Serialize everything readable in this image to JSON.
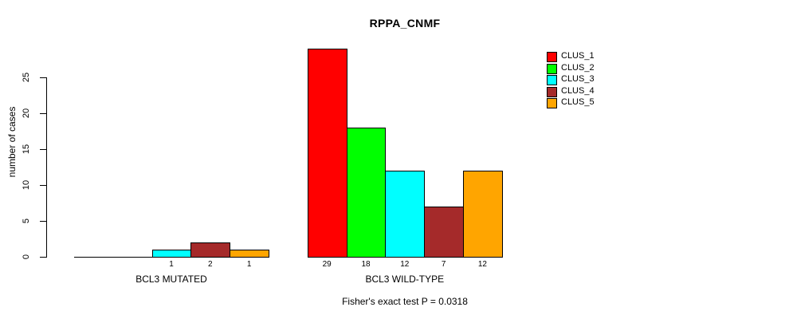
{
  "chart_data": {
    "type": "bar",
    "title": "RPPA_CNMF",
    "ylabel": "number of cases",
    "xlabel": "",
    "yticks": [
      0,
      5,
      10,
      15,
      20,
      25
    ],
    "ylim": [
      0,
      29
    ],
    "grid": false,
    "legend_position": "right",
    "series": [
      {
        "name": "CLUS_1",
        "color": "#FF0000"
      },
      {
        "name": "CLUS_2",
        "color": "#00FF00"
      },
      {
        "name": "CLUS_3",
        "color": "#00FFFF"
      },
      {
        "name": "CLUS_4",
        "color": "#A52A2A"
      },
      {
        "name": "CLUS_5",
        "color": "#FFA500"
      }
    ],
    "groups": [
      {
        "label": "BCL3 MUTATED",
        "values": [
          0,
          0,
          1,
          2,
          1
        ],
        "bar_labels": [
          "",
          "",
          "1",
          "2",
          "1"
        ]
      },
      {
        "label": "BCL3 WILD-TYPE",
        "values": [
          29,
          18,
          12,
          7,
          12
        ],
        "bar_labels": [
          "29",
          "18",
          "12",
          "7",
          "12"
        ]
      }
    ],
    "footnote": "Fisher's exact test P = 0.0318"
  }
}
